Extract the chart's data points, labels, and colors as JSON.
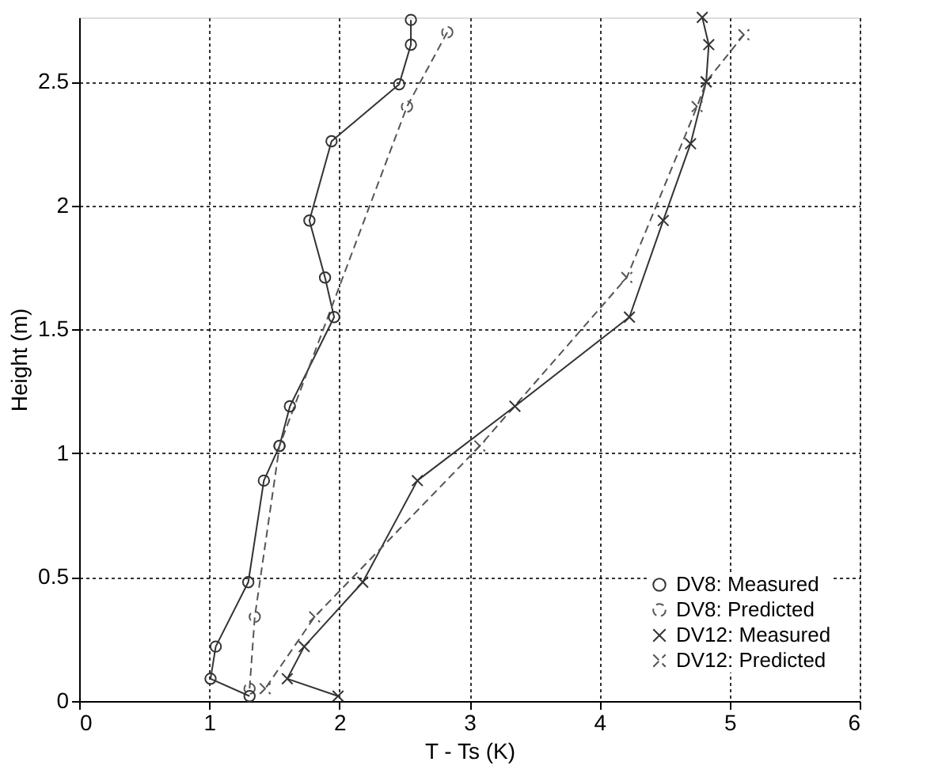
{
  "chart_data": {
    "type": "line",
    "xlabel": "T - Ts (K)",
    "ylabel": "Height (m)",
    "xlim": [
      0,
      6
    ],
    "ylim": [
      0,
      2.76
    ],
    "xticks": [
      0,
      1,
      2,
      3,
      4,
      5,
      6
    ],
    "yticks": [
      0,
      0.5,
      1,
      1.5,
      2,
      2.5
    ],
    "grid": true,
    "legend": "bottom right",
    "series": [
      {
        "name": "DV8: Measured",
        "color": "#333333",
        "marker": "circle",
        "line_style": "solid",
        "x": [
          2.55,
          2.55,
          2.46,
          1.94,
          1.77,
          1.89,
          1.96,
          1.62,
          1.54,
          1.42,
          1.3,
          1.05,
          1.01,
          1.31
        ],
        "values": [
          2.75,
          2.65,
          2.49,
          2.26,
          1.94,
          1.71,
          1.55,
          1.19,
          1.03,
          0.89,
          0.48,
          0.22,
          0.09,
          0.02
        ]
      },
      {
        "name": "DV8: Predicted",
        "color": "#555555",
        "marker": "circle",
        "line_style": "dashed",
        "x": [
          2.83,
          2.52,
          1.54,
          1.35,
          1.31
        ],
        "values": [
          2.7,
          2.4,
          1.03,
          0.34,
          0.05
        ]
      },
      {
        "name": "DV12: Measured",
        "color": "#333333",
        "marker": "cross",
        "line_style": "solid",
        "x": [
          4.79,
          4.84,
          4.82,
          4.7,
          4.49,
          4.23,
          3.35,
          2.6,
          2.18,
          1.73,
          1.6,
          1.99
        ],
        "values": [
          2.76,
          2.65,
          2.5,
          2.25,
          1.94,
          1.55,
          1.19,
          0.89,
          0.48,
          0.22,
          0.09,
          0.02
        ]
      },
      {
        "name": "DV12: Predicted",
        "color": "#555555",
        "marker": "cross",
        "line_style": "dashed",
        "x": [
          5.11,
          4.82,
          4.75,
          4.21,
          3.08,
          1.81,
          1.43
        ],
        "values": [
          2.69,
          2.5,
          2.4,
          1.71,
          1.03,
          0.34,
          0.05
        ]
      }
    ]
  }
}
